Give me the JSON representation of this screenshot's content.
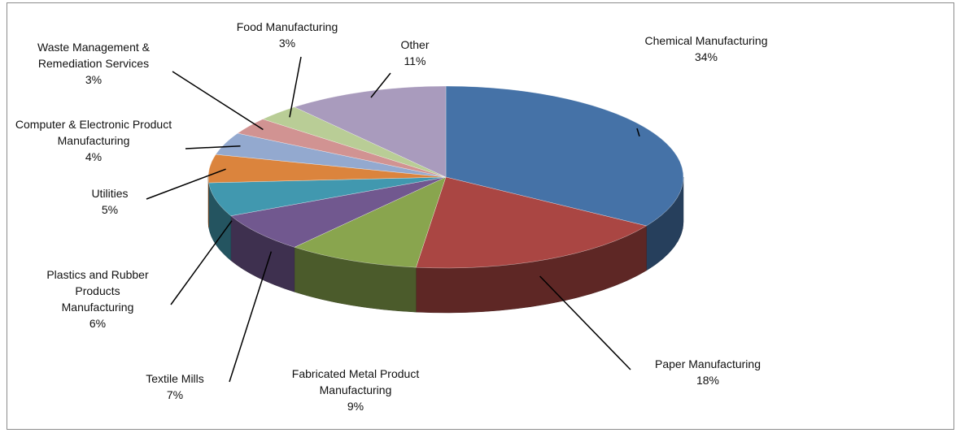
{
  "chart_data": {
    "type": "pie",
    "categories": [
      "Chemical Manufacturing",
      "Paper Manufacturing",
      "Fabricated Metal Product Manufacturing",
      "Textile Mills",
      "Plastics and Rubber Products Manufacturing",
      "Utilities",
      "Computer & Electronic Product Manufacturing",
      "Waste Management & Remediation Services",
      "Food Manufacturing",
      "Other"
    ],
    "values": [
      34,
      18,
      9,
      7,
      6,
      5,
      4,
      3,
      3,
      11
    ],
    "value_labels": [
      "34%",
      "18%",
      "9%",
      "7%",
      "6%",
      "5%",
      "4%",
      "3%",
      "3%",
      "11%"
    ],
    "colors": [
      "#4572a7",
      "#aa4643",
      "#89a54e",
      "#71588f",
      "#4198af",
      "#db843d",
      "#93a9cf",
      "#d19392",
      "#b9cd96",
      "#a99bbd"
    ]
  }
}
